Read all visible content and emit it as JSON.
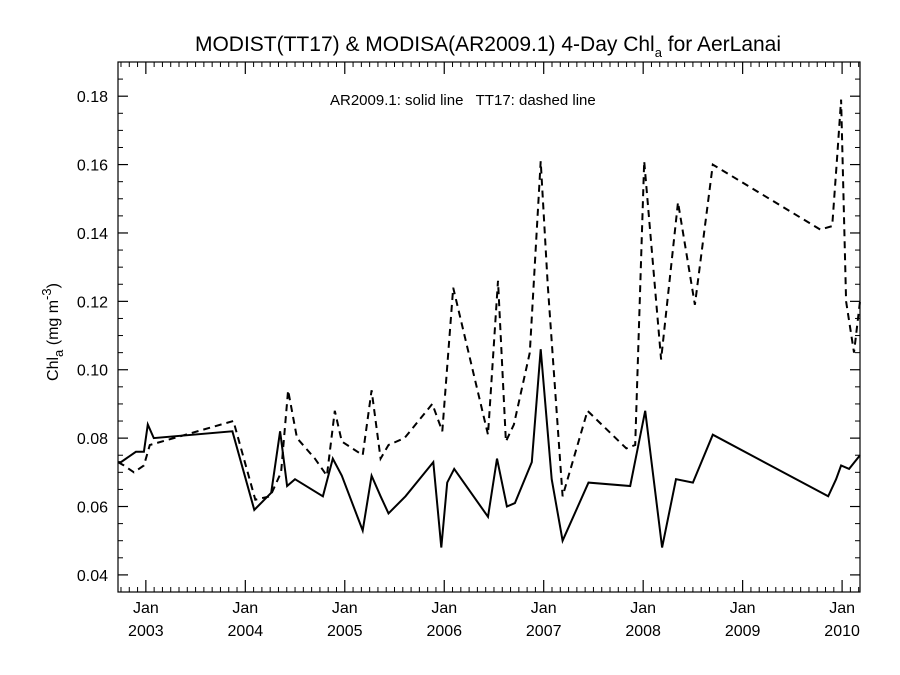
{
  "chart_data": {
    "type": "line",
    "title": "MODIST(TT17) & MODISA(AR2009.1) 4-Day Chl",
    "title_subscript": "a",
    "title_suffix": " for AerLanai",
    "ylabel": "Chl",
    "ylabel_subscript": "a",
    "ylabel_units": " (mg m",
    "ylabel_superscript": "-3",
    "ylabel_close": ")",
    "annotation": "AR2009.1: solid line   TT17: dashed line",
    "xlim": [
      2002.72,
      2010.18
    ],
    "ylim": [
      0.035,
      0.19
    ],
    "y_ticks": [
      0.04,
      0.06,
      0.08,
      0.1,
      0.12,
      0.14,
      0.16,
      0.18
    ],
    "y_tick_labels": [
      "0.04",
      "0.06",
      "0.08",
      "0.10",
      "0.12",
      "0.14",
      "0.16",
      "0.18"
    ],
    "x_ticks": [
      {
        "x": 2003.0,
        "month": "Jan",
        "year": "2003"
      },
      {
        "x": 2004.0,
        "month": "Jan",
        "year": "2004"
      },
      {
        "x": 2005.0,
        "month": "Jan",
        "year": "2005"
      },
      {
        "x": 2006.0,
        "month": "Jan",
        "year": "2006"
      },
      {
        "x": 2007.0,
        "month": "Jan",
        "year": "2007"
      },
      {
        "x": 2008.0,
        "month": "Jan",
        "year": "2008"
      },
      {
        "x": 2009.0,
        "month": "Jan",
        "year": "2009"
      },
      {
        "x": 2010.0,
        "month": "Jan",
        "year": "2010"
      }
    ],
    "series": [
      {
        "style": "solid",
        "x": [
          2002.72,
          2002.75,
          2002.9,
          2002.98,
          2003.02,
          2003.08,
          2003.87,
          2004.09,
          2004.26,
          2004.35,
          2004.42,
          2004.5,
          2004.78,
          2004.88,
          2004.97,
          2005.18,
          2005.27,
          2005.36,
          2005.44,
          2005.61,
          2005.89,
          2005.97,
          2006.03,
          2006.1,
          2006.44,
          2006.53,
          2006.63,
          2006.71,
          2006.88,
          2006.97,
          2007.08,
          2007.19,
          2007.45,
          2007.87,
          2008.02,
          2008.19,
          2008.33,
          2008.5,
          2008.7,
          2009.86,
          2009.94,
          2009.99,
          2010.07,
          2010.18
        ],
        "y": [
          0.073,
          0.073,
          0.076,
          0.076,
          0.084,
          0.08,
          0.082,
          0.059,
          0.064,
          0.082,
          0.066,
          0.068,
          0.063,
          0.074,
          0.069,
          0.053,
          0.069,
          0.063,
          0.058,
          0.063,
          0.073,
          0.048,
          0.067,
          0.071,
          0.057,
          0.074,
          0.06,
          0.061,
          0.073,
          0.106,
          0.068,
          0.05,
          0.067,
          0.066,
          0.088,
          0.048,
          0.068,
          0.067,
          0.081,
          0.063,
          0.068,
          0.072,
          0.071,
          0.075
        ]
      },
      {
        "style": "dashed",
        "x": [
          2002.72,
          2002.78,
          2002.88,
          2002.98,
          2003.04,
          2003.88,
          2004.1,
          2004.25,
          2004.36,
          2004.43,
          2004.52,
          2004.7,
          2004.82,
          2004.9,
          2004.97,
          2005.18,
          2005.27,
          2005.36,
          2005.44,
          2005.6,
          2005.88,
          2005.98,
          2006.09,
          2006.44,
          2006.54,
          2006.62,
          2006.7,
          2006.86,
          2006.97,
          2007.04,
          2007.19,
          2007.44,
          2007.83,
          2007.92,
          2008.01,
          2008.18,
          2008.35,
          2008.52,
          2008.7,
          2009.78,
          2009.9,
          2009.95,
          2009.99,
          2010.04,
          2010.12,
          2010.18
        ],
        "y": [
          0.073,
          0.072,
          0.07,
          0.072,
          0.078,
          0.085,
          0.062,
          0.063,
          0.07,
          0.094,
          0.08,
          0.074,
          0.069,
          0.088,
          0.079,
          0.075,
          0.094,
          0.074,
          0.078,
          0.08,
          0.09,
          0.082,
          0.124,
          0.081,
          0.126,
          0.079,
          0.084,
          0.105,
          0.161,
          0.125,
          0.063,
          0.088,
          0.077,
          0.078,
          0.161,
          0.103,
          0.149,
          0.119,
          0.16,
          0.141,
          0.142,
          0.162,
          0.179,
          0.12,
          0.105,
          0.12
        ]
      }
    ]
  }
}
